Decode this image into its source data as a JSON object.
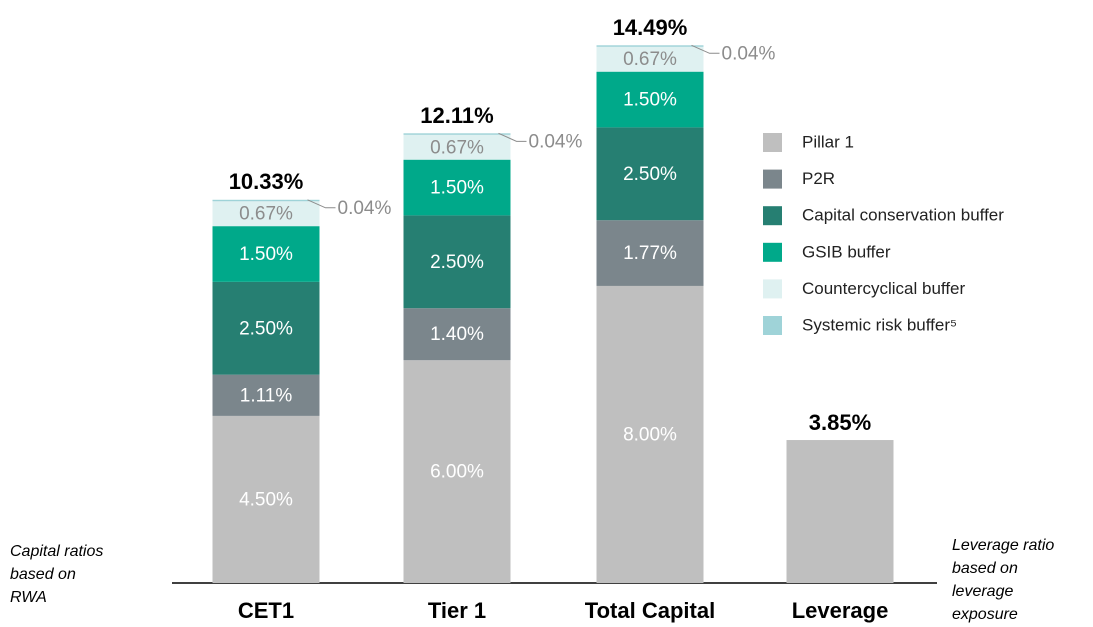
{
  "chart_data": {
    "type": "stacked_bar",
    "categories": [
      "CET1",
      "Tier 1",
      "Total Capital",
      "Leverage"
    ],
    "series": [
      {
        "name": "Pillar 1",
        "color": "#bfbfbf",
        "values": [
          4.5,
          6.0,
          8.0,
          3.85
        ],
        "value_labels": [
          "4.50%",
          "6.00%",
          "8.00%",
          null
        ]
      },
      {
        "name": "P2R",
        "color": "#7b868c",
        "values": [
          1.11,
          1.4,
          1.77,
          null
        ],
        "value_labels": [
          "1.11%",
          "1.40%",
          "1.77%",
          null
        ]
      },
      {
        "name": "Capital conservation buffer",
        "color": "#267f72",
        "values": [
          2.5,
          2.5,
          2.5,
          null
        ],
        "value_labels": [
          "2.50%",
          "2.50%",
          "2.50%",
          null
        ]
      },
      {
        "name": "GSIB buffer",
        "color": "#00a98a",
        "values": [
          1.5,
          1.5,
          1.5,
          null
        ],
        "value_labels": [
          "1.50%",
          "1.50%",
          "1.50%",
          null
        ]
      },
      {
        "name": "Countercyclical buffer",
        "color": "#dff1f1",
        "values": [
          0.67,
          0.67,
          0.67,
          null
        ],
        "value_labels": [
          "0.67%",
          "0.67%",
          "0.67%",
          null
        ]
      },
      {
        "name": "Systemic risk buffer⁵",
        "color": "#9fd3d8",
        "values": [
          0.04,
          0.04,
          0.04,
          null
        ],
        "value_labels": [
          "0.04%",
          "0.04%",
          "0.04%",
          null
        ]
      }
    ],
    "totals": {
      "values": [
        10.33,
        12.11,
        14.49,
        3.85
      ],
      "value_labels": [
        "10.33%",
        "12.11%",
        "14.49%",
        "3.85%"
      ]
    },
    "ylim": [
      0,
      15
    ],
    "annotations": [
      [
        "Capital ratios",
        "based on",
        "RWA"
      ],
      [
        "Leverage ratio",
        "based on",
        "leverage",
        "exposure"
      ]
    ]
  }
}
